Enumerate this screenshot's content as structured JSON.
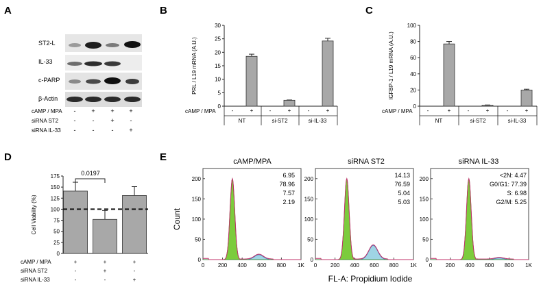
{
  "panels": {
    "A": {
      "letter": "A",
      "blot_labels": [
        "ST2-L",
        "IL-33",
        "c-PARP",
        "β-Actin"
      ],
      "condition_rows": [
        {
          "label": "cAMP / MPA",
          "marks": [
            "-",
            "+",
            "+",
            "+"
          ]
        },
        {
          "label": "siRNA ST2",
          "marks": [
            "-",
            "-",
            "+",
            "-"
          ]
        },
        {
          "label": "siRNA IL-33",
          "marks": [
            "-",
            "-",
            "-",
            "+"
          ]
        }
      ]
    },
    "B": {
      "letter": "B",
      "condition_label": "cAMP / MPA",
      "treatment_marks": [
        "-",
        "+",
        "-",
        "+",
        "-",
        "+"
      ],
      "group_labels": [
        "NT",
        "si-ST2",
        "si-IL-33"
      ]
    },
    "C": {
      "letter": "C",
      "condition_label": "cAMP / MPA",
      "treatment_marks": [
        "-",
        "+",
        "-",
        "+",
        "-",
        "+"
      ],
      "group_labels": [
        "NT",
        "si-ST2",
        "si-IL-33"
      ]
    },
    "D": {
      "letter": "D",
      "pvalue": "0.0197",
      "condition_rows": [
        {
          "label": "cAMP / MPA",
          "marks": [
            "+",
            "+",
            "+"
          ]
        },
        {
          "label": "siRNA ST2",
          "marks": [
            "-",
            "+",
            "-"
          ]
        },
        {
          "label": "siRNA IL-33",
          "marks": [
            "-",
            "-",
            "+"
          ]
        }
      ]
    },
    "E": {
      "letter": "E",
      "ylabel": "Count",
      "xlabel": "FL-A: Propidium Iodide",
      "histograms": [
        {
          "title": "cAMP/MPA",
          "stats": [
            "6.95",
            "78.96",
            "7.57",
            "2.19"
          ]
        },
        {
          "title": "siRNA ST2",
          "stats": [
            "14.13",
            "76.59",
            "5.04",
            "5.03"
          ]
        },
        {
          "title": "siRNA IL-33",
          "stats": [
            "<2N: 4.47",
            "G0/G1: 77.39",
            "S: 6.98",
            "G2/M: 5.25"
          ]
        }
      ]
    }
  },
  "chart_data": [
    {
      "type": "bar",
      "panel": "B",
      "ylabel": "PRL / L19 mRNA (A.U.)",
      "ylim": [
        0,
        30
      ],
      "yticks": [
        "0",
        "5",
        "10",
        "15",
        "20",
        "25",
        "30"
      ],
      "categories": [
        "NT -",
        "NT +",
        "si-ST2 -",
        "si-ST2 +",
        "si-IL-33 -",
        "si-IL-33 +"
      ],
      "values": [
        0,
        18.5,
        0,
        2.2,
        0,
        24.2
      ],
      "errors": [
        0,
        0.8,
        0,
        0.1,
        0,
        1.0
      ]
    },
    {
      "type": "bar",
      "panel": "C",
      "ylabel": "IGFBP-1 / L19 mRNA (A.U.)",
      "ylim": [
        0,
        100
      ],
      "yticks": [
        "0",
        "20",
        "40",
        "60",
        "80",
        "100"
      ],
      "categories": [
        "NT -",
        "NT +",
        "si-ST2 -",
        "si-ST2 +",
        "si-IL-33 -",
        "si-IL-33 +"
      ],
      "values": [
        0,
        77,
        0,
        1.2,
        0,
        20
      ],
      "errors": [
        0,
        3,
        0,
        0.3,
        0,
        1
      ]
    },
    {
      "type": "bar",
      "panel": "D",
      "ylabel": "Cell Viability (%)",
      "ylim": [
        0,
        175
      ],
      "yticks": [
        "0",
        "25",
        "50",
        "75",
        "100",
        "125",
        "150",
        "175"
      ],
      "reference_line": 100,
      "categories": [
        "cAMP/MPA",
        "cAMP/MPA + siRNA ST2",
        "cAMP/MPA + siRNA IL-33"
      ],
      "values": [
        141,
        77,
        131
      ],
      "errors": [
        20,
        20,
        20
      ]
    },
    {
      "type": "histogram",
      "panel": "E",
      "ylabel": "Count",
      "xlabel": "FL-A: Propidium Iodide",
      "yticks": [
        "0",
        "50",
        "100",
        "150",
        "200"
      ],
      "xticks": [
        "0",
        "200",
        "400",
        "600",
        "800",
        "1K"
      ],
      "ylim": [
        0,
        225
      ],
      "xlim": [
        0,
        1000
      ],
      "series": [
        {
          "name": "cAMP/MPA",
          "g1_peak": [
            300,
            200
          ],
          "s_peak": [
            570,
            12
          ]
        },
        {
          "name": "siRNA ST2",
          "g1_peak": [
            320,
            200
          ],
          "s_peak": [
            590,
            35
          ]
        },
        {
          "name": "siRNA IL-33",
          "g1_peak": [
            390,
            200
          ],
          "s_peak": [
            700,
            4
          ]
        }
      ]
    }
  ]
}
